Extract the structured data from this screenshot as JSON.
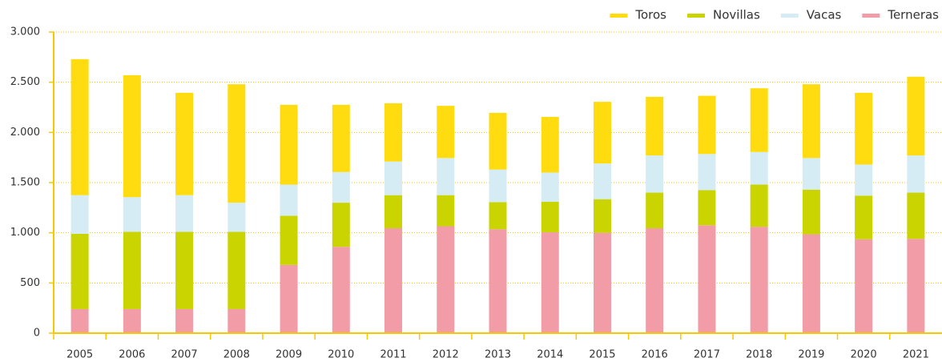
{
  "chart_data": {
    "type": "stacked_bar",
    "categories": [
      "2005",
      "2006",
      "2007",
      "2008",
      "2009",
      "2010",
      "2011",
      "2012",
      "2013",
      "2014",
      "2015",
      "2016",
      "2017",
      "2018",
      "2019",
      "2020",
      "2021"
    ],
    "series": [
      {
        "name": "Terneras",
        "color": "#f29ca8",
        "values": [
          240,
          240,
          240,
          240,
          680,
          860,
          1045,
          1065,
          1035,
          1005,
          1000,
          1045,
          1075,
          1060,
          985,
          935,
          940
        ]
      },
      {
        "name": "Novillas",
        "color": "#c9d400",
        "values": [
          750,
          770,
          770,
          770,
          490,
          440,
          330,
          310,
          270,
          305,
          335,
          355,
          350,
          420,
          445,
          435,
          460
        ]
      },
      {
        "name": "Vacas",
        "color": "#d5ecf4",
        "values": [
          385,
          345,
          365,
          290,
          310,
          305,
          335,
          370,
          325,
          290,
          355,
          370,
          360,
          325,
          315,
          310,
          370
        ]
      },
      {
        "name": "Toros",
        "color": "#ffdc0f",
        "values": [
          1355,
          1215,
          1020,
          1180,
          795,
          670,
          580,
          520,
          565,
          555,
          615,
          585,
          580,
          635,
          735,
          715,
          785
        ]
      }
    ],
    "legend_order": [
      "Toros",
      "Novillas",
      "Vacas",
      "Terneras"
    ],
    "ylim": [
      0,
      3000
    ],
    "yticks": [
      0,
      500,
      {
        "value": 1000,
        "label": "1.000"
      },
      {
        "value": 1500,
        "label": "1.500"
      },
      {
        "value": 2000,
        "label": "2.000"
      },
      {
        "value": 2500,
        "label": "2.500"
      },
      {
        "value": 3000,
        "label": "3.000"
      }
    ],
    "grid": true,
    "legend": "top-right"
  }
}
